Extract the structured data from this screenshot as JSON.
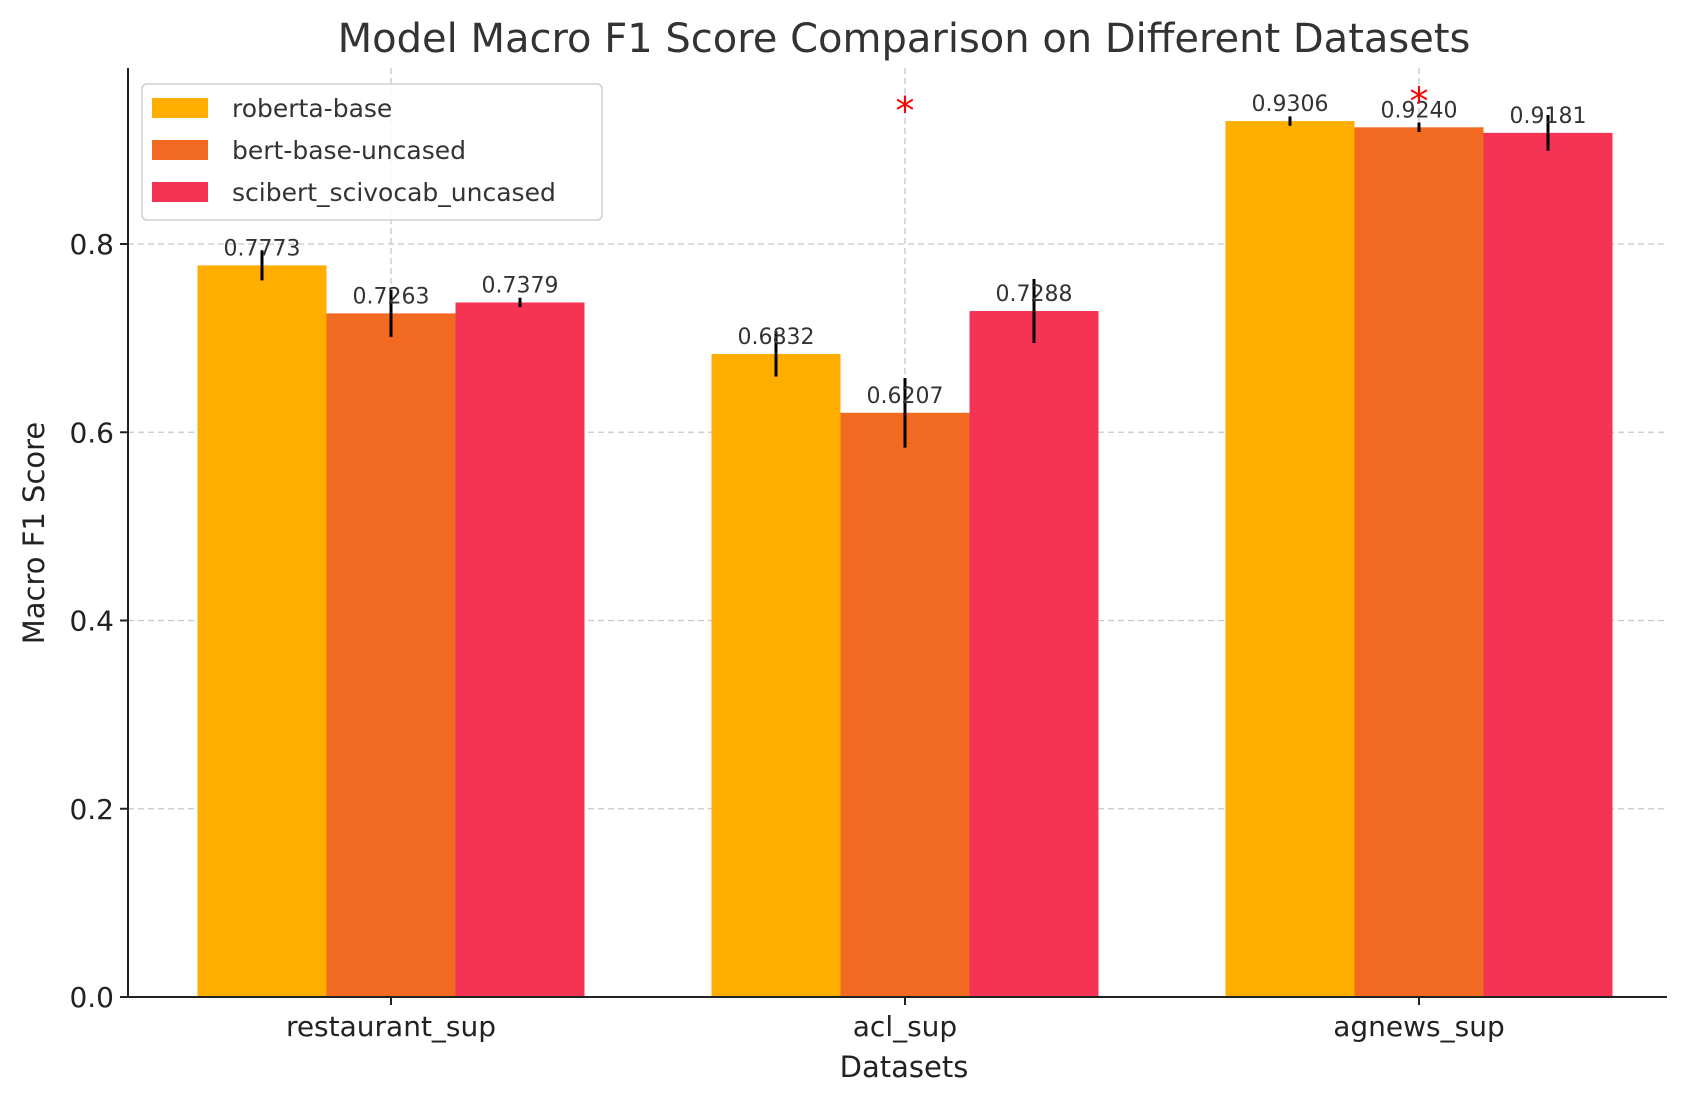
{
  "chart_data": {
    "type": "bar",
    "title": "Model Macro F1 Score Comparison on Different Datasets",
    "xlabel": "Datasets",
    "ylabel": "Macro F1 Score",
    "categories": [
      "restaurant_sup",
      "acl_sup",
      "agnews_sup"
    ],
    "ylim": [
      0,
      0.987
    ],
    "yticks": [
      0.0,
      0.2,
      0.4,
      0.6,
      0.8
    ],
    "ytick_labels": [
      "0.0",
      "0.2",
      "0.4",
      "0.6",
      "0.8"
    ],
    "grid": true,
    "legend_position": "top-left",
    "series": [
      {
        "name": "roberta-base",
        "color": "#FFAE00",
        "values": [
          0.7773,
          0.6832,
          0.9306
        ],
        "errors": [
          0.016,
          0.024,
          0.005
        ],
        "labels": [
          "0.7773",
          "0.6832",
          "0.9306"
        ]
      },
      {
        "name": "bert-base-uncased",
        "color": "#F26A22",
        "values": [
          0.7263,
          0.6207,
          0.924
        ],
        "errors": [
          0.025,
          0.037,
          0.005
        ],
        "labels": [
          "0.7263",
          "0.6207",
          "0.9240"
        ]
      },
      {
        "name": "scibert_scivocab_uncased",
        "color": "#F53355",
        "values": [
          0.7379,
          0.7288,
          0.9181
        ],
        "errors": [
          0.005,
          0.034,
          0.019
        ],
        "labels": [
          "0.7379",
          "0.7288",
          "0.9181"
        ]
      }
    ],
    "annotations": [
      {
        "text": "*",
        "category_index": 1,
        "y": 0.955,
        "color": "#FF0000"
      },
      {
        "text": "*",
        "category_index": 2,
        "y": 0.965,
        "color": "#FF0000"
      }
    ]
  }
}
